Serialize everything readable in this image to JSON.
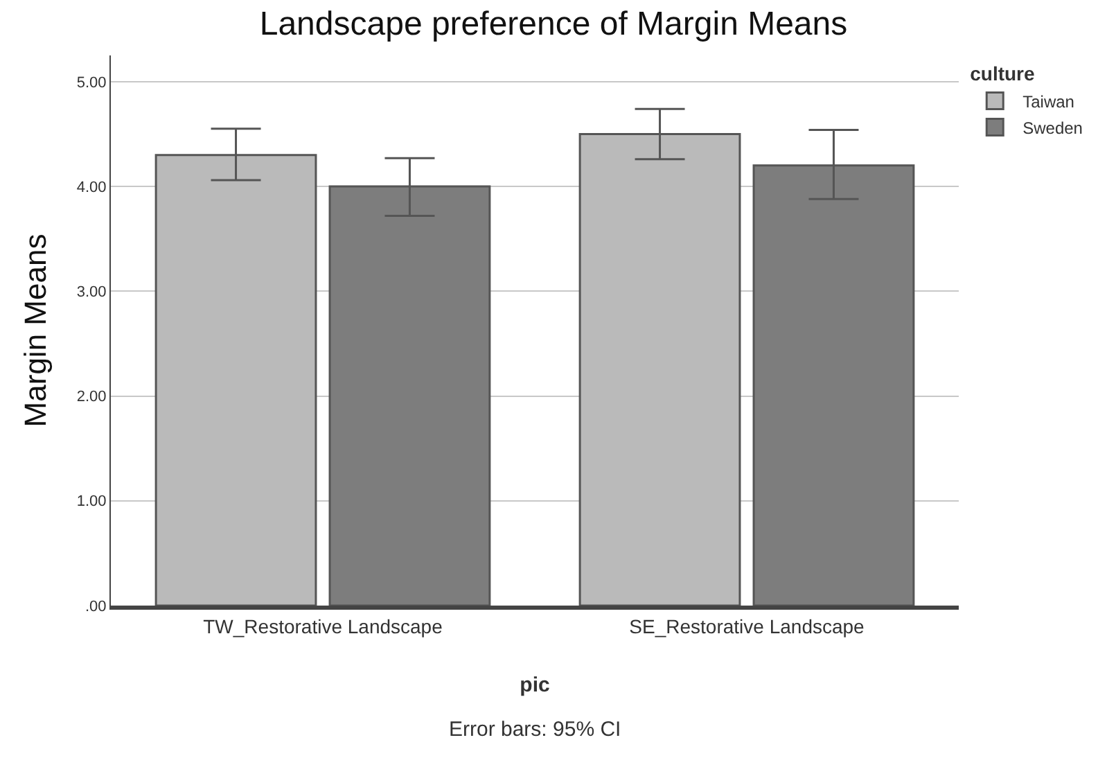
{
  "chart_data": {
    "type": "bar",
    "title": "Landscape preference of Margin Means",
    "xlabel": "pic",
    "ylabel": "Margin Means",
    "legend_title": "culture",
    "categories": [
      "TW_Restorative Landscape",
      "SE_Restorative Landscape"
    ],
    "series": [
      {
        "name": "Taiwan",
        "color": "#bababa",
        "values": [
          4.3,
          4.5
        ],
        "errors": [
          [
            4.06,
            4.55
          ],
          [
            4.26,
            4.74
          ]
        ]
      },
      {
        "name": "Sweden",
        "color": "#7d7d7d",
        "values": [
          4.0,
          4.2
        ],
        "errors": [
          [
            3.72,
            4.27
          ],
          [
            3.88,
            4.54
          ]
        ]
      }
    ],
    "ylim": [
      0,
      5.25
    ],
    "yticks": [
      {
        "value": 0,
        "label": ".00"
      },
      {
        "value": 1,
        "label": "1.00"
      },
      {
        "value": 2,
        "label": "2.00"
      },
      {
        "value": 3,
        "label": "3.00"
      },
      {
        "value": 4,
        "label": "4.00"
      },
      {
        "value": 5,
        "label": "5.00"
      }
    ],
    "grid": "y",
    "legend": "top right",
    "annotations": [
      "Error bars: 95% CI"
    ]
  }
}
